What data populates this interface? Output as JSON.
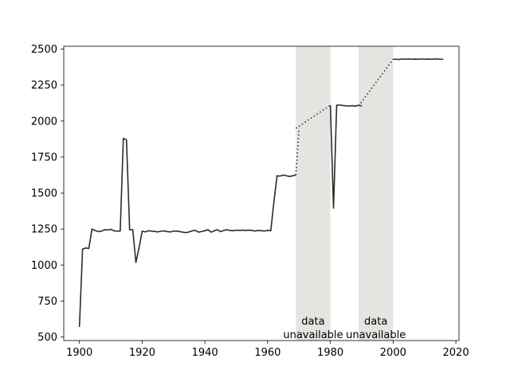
{
  "chart_data": {
    "type": "line",
    "title": "",
    "xlabel": "",
    "ylabel": "",
    "xlim": [
      1895,
      2021
    ],
    "ylim": [
      475,
      2520
    ],
    "x_ticks": [
      1900,
      1920,
      1940,
      1960,
      1980,
      2000,
      2020
    ],
    "y_ticks": [
      500,
      750,
      1000,
      1250,
      1500,
      1750,
      2000,
      2250,
      2500
    ],
    "grid": false,
    "legend": "none",
    "colors": {
      "line": "#2b2b2b",
      "shade": "#e6e4e0",
      "axes": "#000000"
    },
    "series": [
      {
        "x": [
          1900,
          1901,
          1902,
          1903,
          1904,
          1905,
          1906,
          1907,
          1908,
          1909,
          1910,
          1911,
          1912,
          1913,
          1914,
          1915,
          1916,
          1917,
          1918,
          1919,
          1920,
          1921,
          1922,
          1923,
          1924,
          1925,
          1926,
          1927,
          1928,
          1929,
          1930,
          1931,
          1932,
          1933,
          1934,
          1935,
          1936,
          1937,
          1938,
          1939,
          1940,
          1941,
          1942,
          1943,
          1944,
          1945,
          1946,
          1947,
          1948,
          1949,
          1950,
          1951,
          1952,
          1953,
          1954,
          1955,
          1956,
          1957,
          1958,
          1959,
          1960,
          1961,
          1962,
          1963,
          1964,
          1965,
          1966,
          1967,
          1968,
          1969
        ],
        "values": [
          570,
          1110,
          1118,
          1115,
          1250,
          1240,
          1232,
          1235,
          1245,
          1243,
          1248,
          1238,
          1235,
          1236,
          1880,
          1870,
          1245,
          1245,
          1018,
          1120,
          1235,
          1230,
          1238,
          1235,
          1233,
          1230,
          1235,
          1237,
          1232,
          1230,
          1235,
          1236,
          1232,
          1228,
          1225,
          1230,
          1238,
          1240,
          1228,
          1233,
          1238,
          1245,
          1228,
          1238,
          1245,
          1232,
          1240,
          1245,
          1240,
          1238,
          1242,
          1240,
          1242,
          1240,
          1242,
          1240,
          1236,
          1240,
          1238,
          1236,
          1240,
          1238,
          1440,
          1620,
          1618,
          1625,
          1620,
          1615,
          1620,
          1625
        ]
      },
      {
        "x": [
          1969,
          1970
        ],
        "values": [
          1625,
          1950
        ]
      },
      {
        "x": [
          1980,
          1981,
          1982,
          1983,
          1984,
          1985,
          1986,
          1987,
          1988,
          1989,
          1990
        ],
        "values": [
          2110,
          1395,
          2110,
          2112,
          2108,
          2106,
          2105,
          2107,
          2104,
          2110,
          2105
        ]
      },
      {
        "x": [
          2000,
          2001,
          2002,
          2003,
          2004,
          2005,
          2006,
          2007,
          2008,
          2009,
          2010,
          2011,
          2012,
          2013,
          2014,
          2015,
          2016
        ],
        "values": [
          2430,
          2430,
          2428,
          2432,
          2430,
          2432,
          2430,
          2431,
          2430,
          2432,
          2430,
          2431,
          2430,
          2431,
          2432,
          2430,
          2430
        ]
      }
    ],
    "gaps": [
      {
        "x_start": 1969,
        "x_end": 1980,
        "from_value": 1950,
        "to_value": 2110,
        "label_line1": "data",
        "label_line2": "unavailable"
      },
      {
        "x_start": 1989,
        "x_end": 2000,
        "from_value": 2105,
        "to_value": 2430,
        "label_line1": "data",
        "label_line2": "unavailable"
      }
    ]
  }
}
